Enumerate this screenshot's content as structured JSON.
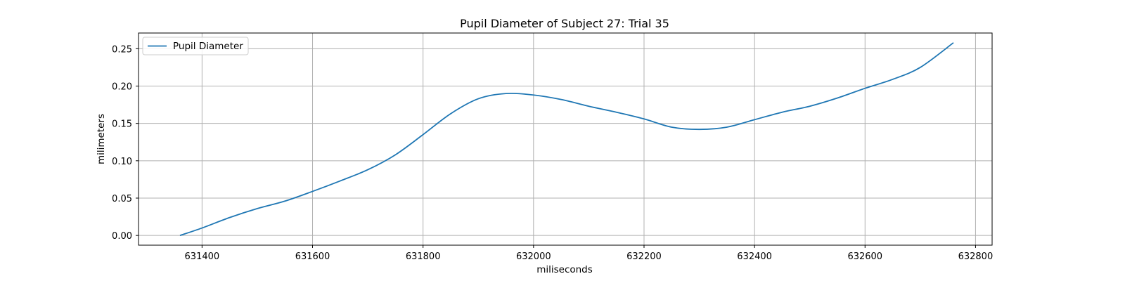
{
  "chart_data": {
    "type": "line",
    "title": "Pupil Diameter of Subject 27: Trial 35",
    "xlabel": "miliseconds",
    "ylabel": "milimeters",
    "xlim": [
      631285,
      632830
    ],
    "ylim": [
      -0.013,
      0.271
    ],
    "xticks": [
      631400,
      631600,
      631800,
      632000,
      632200,
      632400,
      632600,
      632800
    ],
    "yticks": [
      0.0,
      0.05,
      0.1,
      0.15,
      0.2,
      0.25
    ],
    "xtick_labels": [
      "631400",
      "631600",
      "631800",
      "632000",
      "632200",
      "632400",
      "632600",
      "632800"
    ],
    "ytick_labels": [
      "0.00",
      "0.05",
      "0.10",
      "0.15",
      "0.20",
      "0.25"
    ],
    "grid": true,
    "legend_position": "upper-left",
    "colors": {
      "series": "#1f77b4",
      "grid": "#b0b0b0",
      "axes": "#000000"
    },
    "series": [
      {
        "name": "Pupil Diameter",
        "x": [
          631360,
          631400,
          631450,
          631500,
          631550,
          631600,
          631650,
          631700,
          631750,
          631800,
          631850,
          631900,
          631950,
          632000,
          632050,
          632100,
          632150,
          632200,
          632250,
          632300,
          632350,
          632400,
          632450,
          632500,
          632550,
          632600,
          632650,
          632700,
          632760
        ],
        "values": [
          0.0,
          0.01,
          0.024,
          0.036,
          0.046,
          0.059,
          0.073,
          0.088,
          0.108,
          0.135,
          0.163,
          0.183,
          0.19,
          0.188,
          0.182,
          0.173,
          0.165,
          0.156,
          0.145,
          0.142,
          0.145,
          0.155,
          0.165,
          0.173,
          0.184,
          0.197,
          0.209,
          0.225,
          0.258
        ]
      }
    ]
  }
}
